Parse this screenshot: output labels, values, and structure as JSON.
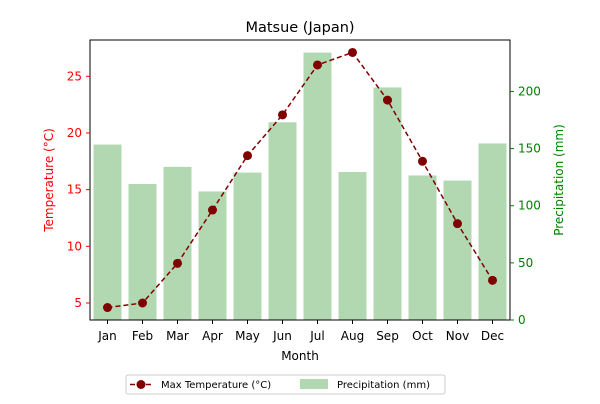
{
  "chart_data": {
    "type": "bar+line",
    "title": "Matsue (Japan)",
    "xlabel": "Month",
    "ylabel_left": "Temperature (°C)",
    "ylabel_right": "Precipitation (mm)",
    "categories": [
      "Jan",
      "Feb",
      "Mar",
      "Apr",
      "May",
      "Jun",
      "Jul",
      "Aug",
      "Sep",
      "Oct",
      "Nov",
      "Dec"
    ],
    "series": [
      {
        "name": "Max Temperature (°C)",
        "type": "line",
        "axis": "left",
        "color": "#800000",
        "line_style": "dashed",
        "marker": "circle",
        "values": [
          4.6,
          5.0,
          8.5,
          13.2,
          18.0,
          21.6,
          26.0,
          27.1,
          22.9,
          17.5,
          12.0,
          7.0
        ]
      },
      {
        "name": "Precipitation (mm)",
        "type": "bar",
        "axis": "right",
        "color": "#b2d8b2",
        "values": [
          153.5,
          119.0,
          134.0,
          112.5,
          129.0,
          173.0,
          234.0,
          129.5,
          203.5,
          126.5,
          122.0,
          154.5
        ]
      }
    ],
    "ylim_left": [
      3.5,
      28.2
    ],
    "yticks_left": [
      5,
      10,
      15,
      20,
      25
    ],
    "ylim_right": [
      0,
      245
    ],
    "yticks_right": [
      0,
      50,
      100,
      150,
      200
    ],
    "left_axis_color": "#ff0000",
    "right_axis_color": "#008000",
    "grid": false,
    "legend": {
      "placement": "bottom-center",
      "entries": [
        "Max Temperature (°C)",
        "Precipitation (mm)"
      ]
    }
  }
}
